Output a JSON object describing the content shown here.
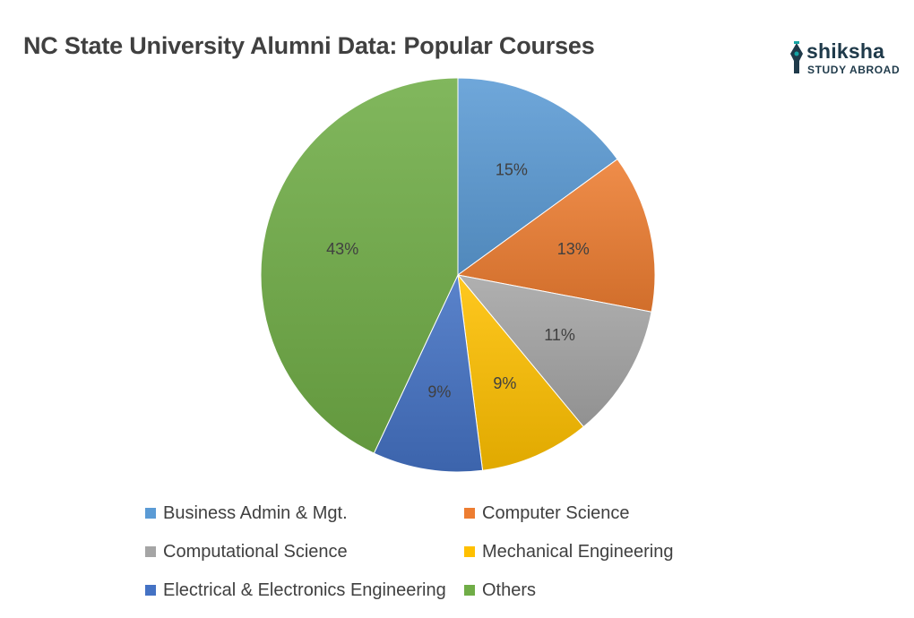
{
  "title": "NC State University Alumni Data: Popular Courses",
  "logo": {
    "brand": "shiksha",
    "sub": "STUDY ABROAD",
    "color": "#1f3a4a",
    "accent": "#14a3a3"
  },
  "chart_data": {
    "type": "pie",
    "title": "NC State University Alumni Data: Popular Courses",
    "categories": [
      "Business Admin & Mgt.",
      "Computer Science",
      "Computational Science",
      "Mechanical Engineering",
      "Electrical & Electronics Engineering",
      "Others"
    ],
    "values": [
      15,
      13,
      11,
      9,
      9,
      43
    ],
    "labels": [
      "15%",
      "13%",
      "11%",
      "9%",
      "9%",
      "43%"
    ],
    "colors": [
      "#5b9bd5",
      "#ed7d31",
      "#a5a5a5",
      "#ffc000",
      "#4472c4",
      "#70ad47"
    ],
    "legend_position": "bottom",
    "start_angle_deg": 0,
    "direction": "clockwise"
  }
}
